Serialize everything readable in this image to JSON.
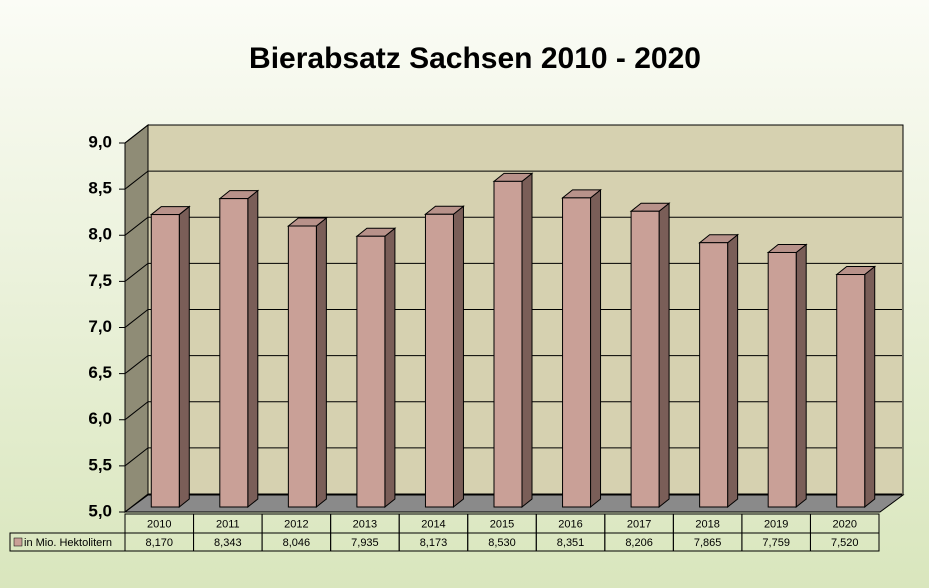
{
  "chart_data": {
    "type": "bar3d",
    "title": "Bierabsatz Sachsen 2010 - 2020",
    "categories": [
      "2010",
      "2011",
      "2012",
      "2013",
      "2014",
      "2015",
      "2016",
      "2017",
      "2018",
      "2019",
      "2020"
    ],
    "series": [
      {
        "name": "in Mio. Hektolitern",
        "color": "#c9a097",
        "values": [
          8.17,
          8.343,
          8.046,
          7.935,
          8.173,
          8.53,
          8.351,
          8.206,
          7.865,
          7.759,
          7.52
        ],
        "value_labels": [
          "8,170",
          "8,343",
          "8,046",
          "7,935",
          "8,173",
          "8,530",
          "8,351",
          "8,206",
          "7,865",
          "7,759",
          "7,520"
        ]
      }
    ],
    "ylim": [
      5,
      9
    ],
    "yticks": [
      {
        "value": 5,
        "label": "5,0"
      },
      {
        "value": 5.5,
        "label": "5,5"
      },
      {
        "value": 6,
        "label": "6,0"
      },
      {
        "value": 6.5,
        "label": "6,5"
      },
      {
        "value": 7,
        "label": "7,0"
      },
      {
        "value": 7.5,
        "label": "7,5"
      },
      {
        "value": 8,
        "label": "8,0"
      },
      {
        "value": 8.5,
        "label": "8,5"
      },
      {
        "value": 9,
        "label": "9,0"
      }
    ],
    "grid": true
  }
}
